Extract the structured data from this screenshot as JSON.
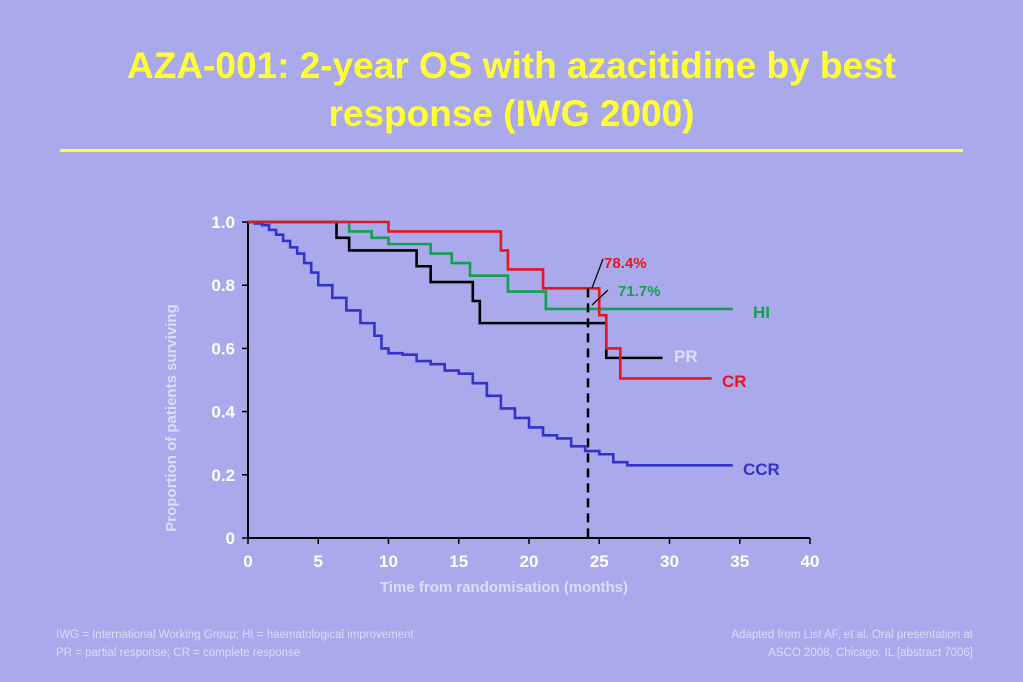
{
  "slide": {
    "title_line1": "AZA-001: 2-year OS with azacitidine by best",
    "title_line2": "response (IWG 2000)",
    "footnote_left": [
      "IWG = International Working Group; HI = haematological improvement",
      "PR = partial response; CR = complete response"
    ],
    "footnote_right": [
      "Adapted from List AF, et al. Oral presentation at",
      "ASCO 2008, Chicago, IL [abstract 7006]"
    ]
  },
  "colors": {
    "background": "#aaa9ec",
    "title": "#ffff33",
    "axis_text": "#ffffff",
    "cr": "#e8141e",
    "hi": "#12a050",
    "pr": "#000000",
    "ccr": "#3333cc"
  },
  "chart_data": {
    "type": "line",
    "subtype": "kaplan-meier step",
    "xlabel": "Time from randomisation (months)",
    "ylabel": "Proportion of patients surviving",
    "xlim": [
      0,
      40
    ],
    "ylim": [
      0,
      1.0
    ],
    "xticks": [
      0,
      5,
      10,
      15,
      20,
      25,
      30,
      35,
      40
    ],
    "yticks": [
      0,
      0.2,
      0.4,
      0.6,
      0.8,
      1.0
    ],
    "ytick_labels": [
      "0",
      "0.2",
      "0.4",
      "0.6",
      "0.8",
      "1.0"
    ],
    "grid": false,
    "reference_line": {
      "x": 24.2,
      "style": "dashed",
      "color": "#000000"
    },
    "annotations": [
      {
        "text": "78.4%",
        "series": "CR",
        "x": 24.2,
        "y": 0.784
      },
      {
        "text": "71.7%",
        "series": "HI",
        "x": 24.2,
        "y": 0.717
      }
    ],
    "series": [
      {
        "name": "HI",
        "color": "#12a050",
        "x": [
          0,
          7.2,
          8.8,
          10,
          13,
          14.5,
          15.8,
          18.5,
          21.2,
          34.5
        ],
        "y": [
          1.0,
          0.97,
          0.95,
          0.93,
          0.9,
          0.87,
          0.83,
          0.78,
          0.725,
          0.725
        ]
      },
      {
        "name": "CR",
        "color": "#e8141e",
        "x": [
          0,
          10,
          18,
          18.5,
          21,
          25,
          25.5,
          26.5,
          33
        ],
        "y": [
          1.0,
          0.97,
          0.91,
          0.85,
          0.79,
          0.705,
          0.6,
          0.505,
          0.505
        ]
      },
      {
        "name": "PR",
        "color": "#000000",
        "x": [
          0,
          6.3,
          7.2,
          9.5,
          12,
          13,
          16,
          16.5,
          25.3,
          25.5,
          29.5
        ],
        "y": [
          1.0,
          0.95,
          0.91,
          0.91,
          0.86,
          0.81,
          0.75,
          0.68,
          0.68,
          0.57,
          0.57
        ]
      },
      {
        "name": "CCR",
        "color": "#3333cc",
        "x": [
          0,
          0.5,
          1,
          1.5,
          2,
          2.5,
          3,
          3.5,
          4,
          4.5,
          5,
          6,
          7,
          8,
          9,
          9.5,
          10,
          11,
          12,
          13,
          14,
          15,
          16,
          17,
          18,
          19,
          20,
          21,
          22,
          23,
          24,
          25,
          26,
          27,
          30,
          34.5
        ],
        "y": [
          1.0,
          0.995,
          0.99,
          0.975,
          0.96,
          0.94,
          0.92,
          0.9,
          0.87,
          0.84,
          0.8,
          0.76,
          0.72,
          0.68,
          0.64,
          0.6,
          0.585,
          0.58,
          0.56,
          0.55,
          0.53,
          0.52,
          0.49,
          0.45,
          0.41,
          0.38,
          0.35,
          0.325,
          0.315,
          0.29,
          0.275,
          0.265,
          0.24,
          0.23,
          0.23,
          0.23
        ]
      }
    ],
    "series_labels": [
      {
        "text": "HI",
        "series": "HI",
        "color": "#12a050"
      },
      {
        "text": "PR",
        "series": "PR",
        "color": "#ddddf8"
      },
      {
        "text": "CR",
        "series": "CR",
        "color": "#e8141e"
      },
      {
        "text": "CCR",
        "series": "CCR",
        "color": "#3333cc"
      }
    ]
  }
}
